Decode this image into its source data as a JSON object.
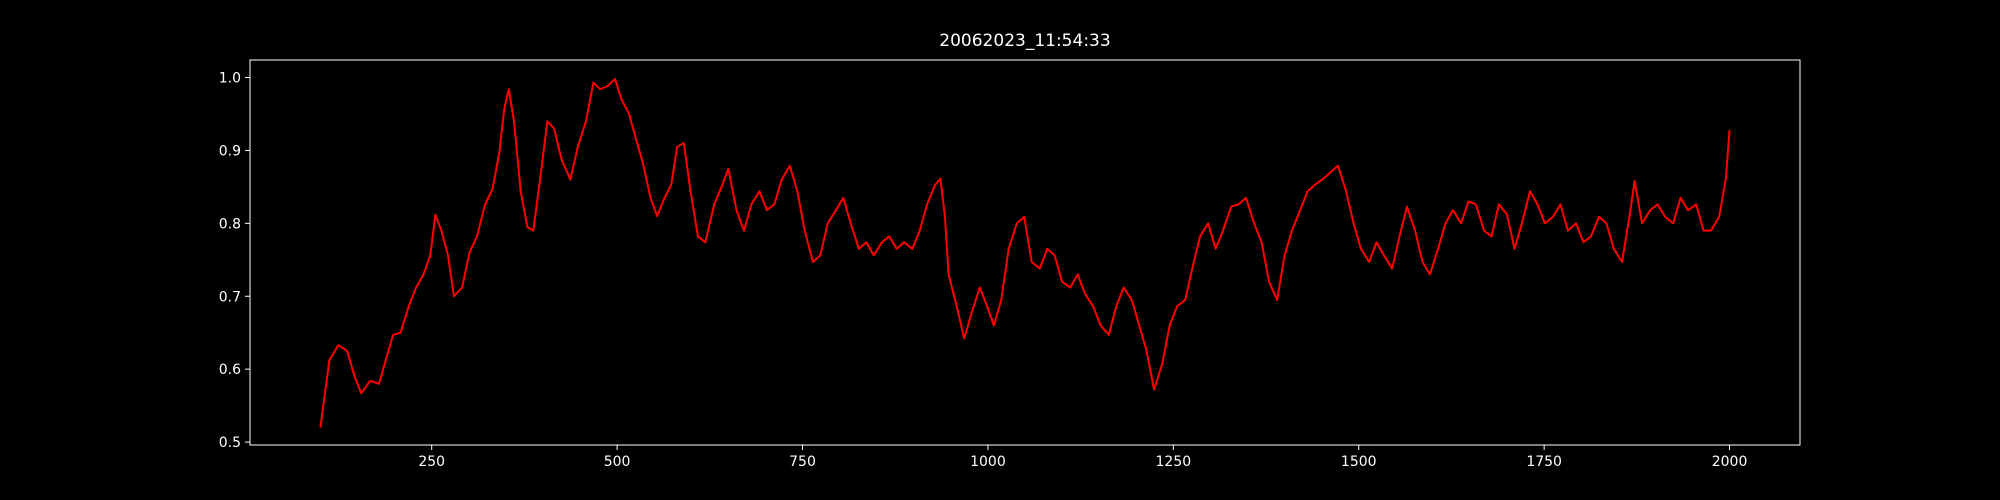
{
  "chart_data": {
    "type": "line",
    "title": "20062023_11:54:33",
    "color": "#ff0000",
    "x": [
      100,
      112,
      124,
      136,
      146,
      155,
      167,
      179,
      189,
      198,
      208,
      219,
      229,
      239,
      248,
      255,
      263,
      272,
      280,
      291,
      301,
      311,
      322,
      332,
      341,
      348,
      354,
      361,
      370,
      379,
      387,
      396,
      406,
      415,
      425,
      437,
      447,
      458,
      468,
      477,
      487,
      497,
      506,
      516,
      526,
      535,
      545,
      554,
      564,
      573,
      581,
      590,
      599,
      609,
      619,
      631,
      642,
      650,
      661,
      671,
      681,
      692,
      702,
      712,
      722,
      733,
      743,
      753,
      764,
      774,
      784,
      795,
      805,
      815,
      826,
      836,
      846,
      857,
      867,
      877,
      887,
      898,
      908,
      918,
      929,
      936,
      942,
      947,
      958,
      968,
      978,
      989,
      999,
      1008,
      1018,
      1028,
      1039,
      1049,
      1059,
      1070,
      1080,
      1090,
      1100,
      1111,
      1121,
      1131,
      1142,
      1152,
      1163,
      1173,
      1183,
      1194,
      1204,
      1214,
      1224,
      1235,
      1245,
      1255,
      1266,
      1276,
      1286,
      1297,
      1307,
      1317,
      1328,
      1338,
      1348,
      1359,
      1369,
      1379,
      1390,
      1400,
      1410,
      1421,
      1431,
      1441,
      1452,
      1462,
      1472,
      1483,
      1493,
      1503,
      1514,
      1524,
      1534,
      1545,
      1555,
      1565,
      1576,
      1586,
      1596,
      1607,
      1617,
      1627,
      1638,
      1648,
      1658,
      1669,
      1679,
      1689,
      1700,
      1710,
      1720,
      1731,
      1741,
      1751,
      1762,
      1772,
      1782,
      1793,
      1803,
      1813,
      1824,
      1834,
      1844,
      1855,
      1865,
      1872,
      1882,
      1893,
      1903,
      1913,
      1924,
      1934,
      1944,
      1955,
      1965,
      1975,
      1986,
      1995,
      2000
    ],
    "values": [
      0.52,
      0.612,
      0.633,
      0.625,
      0.59,
      0.567,
      0.584,
      0.58,
      0.616,
      0.647,
      0.65,
      0.686,
      0.712,
      0.73,
      0.756,
      0.812,
      0.79,
      0.756,
      0.7,
      0.712,
      0.76,
      0.782,
      0.826,
      0.847,
      0.896,
      0.958,
      0.984,
      0.94,
      0.844,
      0.795,
      0.79,
      0.86,
      0.94,
      0.93,
      0.888,
      0.86,
      0.905,
      0.94,
      0.993,
      0.984,
      0.988,
      0.998,
      0.97,
      0.95,
      0.914,
      0.882,
      0.835,
      0.81,
      0.835,
      0.853,
      0.905,
      0.91,
      0.844,
      0.782,
      0.774,
      0.826,
      0.853,
      0.875,
      0.818,
      0.79,
      0.826,
      0.844,
      0.818,
      0.826,
      0.86,
      0.879,
      0.844,
      0.79,
      0.747,
      0.756,
      0.8,
      0.818,
      0.835,
      0.8,
      0.765,
      0.774,
      0.756,
      0.774,
      0.782,
      0.765,
      0.774,
      0.765,
      0.79,
      0.826,
      0.853,
      0.861,
      0.81,
      0.73,
      0.686,
      0.642,
      0.677,
      0.712,
      0.686,
      0.66,
      0.695,
      0.765,
      0.8,
      0.809,
      0.747,
      0.738,
      0.765,
      0.756,
      0.72,
      0.712,
      0.73,
      0.703,
      0.686,
      0.66,
      0.647,
      0.686,
      0.712,
      0.695,
      0.66,
      0.625,
      0.572,
      0.607,
      0.66,
      0.686,
      0.695,
      0.74,
      0.782,
      0.8,
      0.765,
      0.79,
      0.823,
      0.826,
      0.835,
      0.8,
      0.774,
      0.72,
      0.695,
      0.756,
      0.79,
      0.818,
      0.844,
      0.853,
      0.861,
      0.87,
      0.879,
      0.844,
      0.8,
      0.765,
      0.747,
      0.774,
      0.756,
      0.738,
      0.782,
      0.823,
      0.79,
      0.747,
      0.73,
      0.765,
      0.8,
      0.818,
      0.8,
      0.83,
      0.826,
      0.79,
      0.782,
      0.826,
      0.812,
      0.765,
      0.8,
      0.844,
      0.826,
      0.8,
      0.809,
      0.826,
      0.79,
      0.8,
      0.774,
      0.782,
      0.809,
      0.8,
      0.765,
      0.747,
      0.809,
      0.858,
      0.8,
      0.818,
      0.826,
      0.809,
      0.8,
      0.835,
      0.818,
      0.826,
      0.79,
      0.79,
      0.809,
      0.861,
      0.928
    ],
    "xlim": [
      5,
      2095
    ],
    "xticks": [
      250,
      500,
      750,
      1000,
      1250,
      1500,
      1750,
      2000
    ],
    "ylim": [
      0.496,
      1.024
    ],
    "yticks": [
      0.5,
      0.6,
      0.7,
      0.8,
      0.9,
      {
        "value": 1,
        "label": "1.0"
      }
    ]
  }
}
